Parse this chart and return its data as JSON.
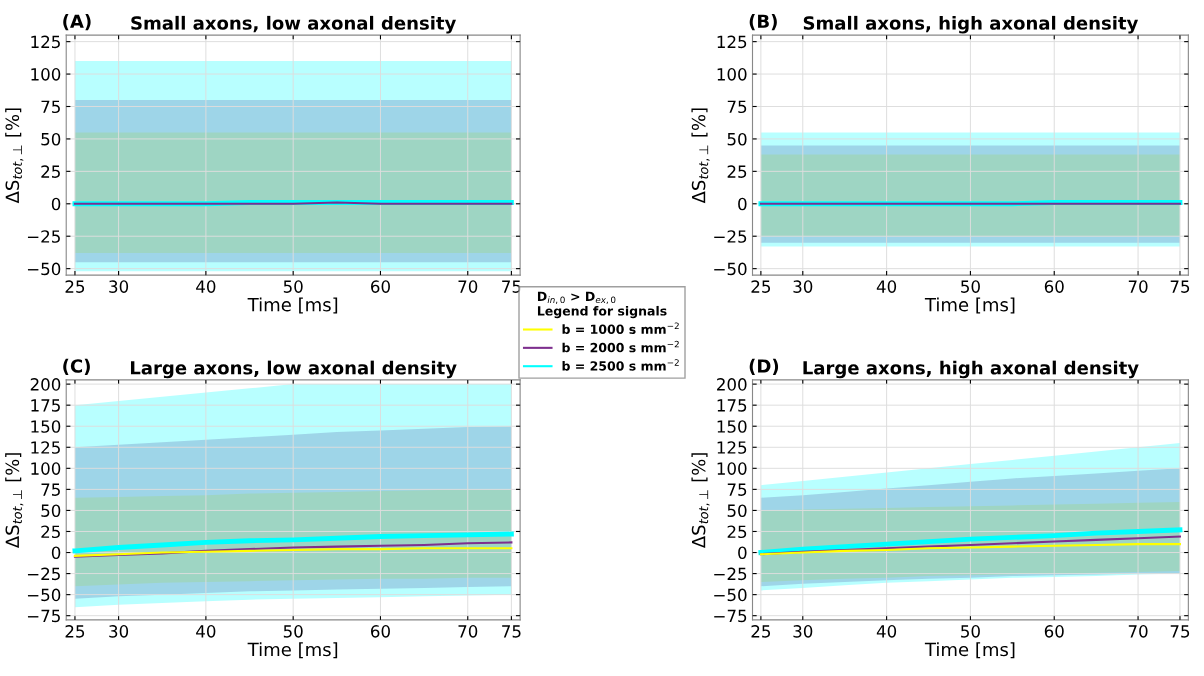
{
  "chart_data": [
    {
      "type": "line",
      "title": "Small axons, low axonal density",
      "annotations": [
        "(A)"
      ],
      "xlabel": "Time [ms]",
      "ylabel": "ΔS$_{tot,⊥}$ [%]",
      "x": [
        25,
        30,
        35,
        40,
        45,
        50,
        55,
        60,
        65,
        70,
        75
      ],
      "xlim": [
        24,
        76
      ],
      "xticks": [
        25,
        30,
        40,
        50,
        60,
        70,
        75
      ],
      "ylim": [
        -55,
        130
      ],
      "yticks": [
        -50,
        -25,
        0,
        25,
        50,
        75,
        100,
        125
      ],
      "grid": true,
      "legend": "right",
      "legend_title": "D$_{in,0}$ > D$_{ex,0}$\nLegend for signals",
      "series": [
        {
          "name": "b = 1000 s mm$^{−2}$",
          "color": "#ffff00",
          "values": [
            null,
            null,
            null,
            null,
            null,
            null,
            null,
            null,
            null,
            null,
            null
          ],
          "lower": [
            -38,
            -38,
            -38,
            -38,
            -38,
            -38,
            -38,
            -38,
            -38,
            -38,
            -38
          ],
          "upper": [
            55,
            55,
            55,
            55,
            55,
            55,
            55,
            55,
            55,
            55,
            55
          ]
        },
        {
          "name": "b = 2000 s mm$^{−2}$",
          "color": "#7e2f8e",
          "values": [
            0,
            0,
            0,
            0,
            0,
            0,
            1,
            0,
            0,
            0,
            0
          ],
          "lower": [
            -45,
            -45,
            -45,
            -45,
            -45,
            -45,
            -45,
            -45,
            -45,
            -45,
            -45
          ],
          "upper": [
            80,
            80,
            80,
            80,
            80,
            80,
            80,
            80,
            80,
            80,
            80
          ]
        },
        {
          "name": "b = 2500 s mm$^{−2}$",
          "color": "#00ffff",
          "values": [
            0,
            0,
            0,
            0,
            1,
            1,
            1,
            1,
            1,
            1,
            1
          ],
          "lower": [
            -52,
            -52,
            -52,
            -52,
            -52,
            -52,
            -52,
            -52,
            -52,
            -52,
            -52
          ],
          "upper": [
            110,
            110,
            110,
            110,
            110,
            110,
            110,
            110,
            110,
            110,
            110
          ]
        }
      ]
    },
    {
      "type": "line",
      "title": "Small axons, high axonal density",
      "annotations": [
        "(B)"
      ],
      "xlabel": "Time [ms]",
      "ylabel": "ΔS$_{tot,⊥}$ [%]",
      "x": [
        25,
        30,
        35,
        40,
        45,
        50,
        55,
        60,
        65,
        70,
        75
      ],
      "xlim": [
        24,
        76
      ],
      "xticks": [
        25,
        30,
        40,
        50,
        60,
        70,
        75
      ],
      "ylim": [
        -55,
        130
      ],
      "yticks": [
        -50,
        -25,
        0,
        25,
        50,
        75,
        100,
        125
      ],
      "grid": true,
      "series": [
        {
          "color": "#ffff00",
          "values": [
            null,
            null,
            null,
            null,
            null,
            null,
            null,
            null,
            null,
            null,
            null
          ],
          "lower": [
            -25,
            -25,
            -25,
            -25,
            -25,
            -25,
            -25,
            -25,
            -25,
            -25,
            -25
          ],
          "upper": [
            38,
            38,
            38,
            38,
            38,
            38,
            38,
            38,
            38,
            38,
            38
          ]
        },
        {
          "color": "#7e2f8e",
          "values": [
            0,
            0,
            0,
            0,
            0,
            0,
            0,
            0,
            0,
            0,
            0
          ],
          "lower": [
            -30,
            -30,
            -30,
            -30,
            -30,
            -30,
            -30,
            -30,
            -30,
            -30,
            -30
          ],
          "upper": [
            45,
            45,
            45,
            45,
            45,
            45,
            45,
            45,
            45,
            45,
            45
          ]
        },
        {
          "color": "#00ffff",
          "values": [
            0,
            0,
            0,
            0,
            0,
            0,
            0,
            1,
            1,
            1,
            1
          ],
          "lower": [
            -33,
            -33,
            -33,
            -33,
            -33,
            -33,
            -33,
            -33,
            -33,
            -33,
            -33
          ],
          "upper": [
            55,
            55,
            55,
            55,
            55,
            55,
            55,
            55,
            55,
            55,
            55
          ]
        }
      ]
    },
    {
      "type": "line",
      "title": "Large axons, low axonal density",
      "annotations": [
        "(C)"
      ],
      "xlabel": "Time [ms]",
      "ylabel": "ΔS$_{tot,⊥}$ [%]",
      "x": [
        25,
        30,
        35,
        40,
        45,
        50,
        55,
        60,
        65,
        70,
        75
      ],
      "xlim": [
        24,
        76
      ],
      "xticks": [
        25,
        30,
        40,
        50,
        60,
        70,
        75
      ],
      "ylim": [
        -80,
        205
      ],
      "yticks": [
        -75,
        -50,
        -25,
        0,
        25,
        50,
        75,
        100,
        125,
        150,
        175,
        200
      ],
      "grid": true,
      "series": [
        {
          "color": "#ffff00",
          "values": [
            -4,
            -2,
            0,
            1,
            2,
            3,
            4,
            4,
            5,
            5,
            5
          ],
          "lower": [
            -40,
            -38,
            -36,
            -35,
            -34,
            -33,
            -32,
            -31,
            -31,
            -30,
            -30
          ],
          "upper": [
            65,
            66,
            67,
            68,
            70,
            71,
            72,
            73,
            74,
            75,
            75
          ]
        },
        {
          "color": "#7e2f8e",
          "values": [
            -5,
            -3,
            -1,
            2,
            4,
            6,
            7,
            8,
            9,
            11,
            12
          ],
          "lower": [
            -55,
            -52,
            -50,
            -48,
            -46,
            -45,
            -44,
            -43,
            -42,
            -41,
            -40
          ],
          "upper": [
            125,
            128,
            131,
            134,
            137,
            140,
            143,
            145,
            147,
            149,
            150
          ]
        },
        {
          "color": "#00ffff",
          "values": [
            2,
            6,
            9,
            12,
            14,
            15,
            17,
            19,
            20,
            21,
            22
          ],
          "lower": [
            -65,
            -62,
            -60,
            -58,
            -56,
            -55,
            -54,
            -53,
            -52,
            -51,
            -50
          ],
          "upper": [
            175,
            180,
            185,
            190,
            195,
            200,
            200,
            200,
            200,
            200,
            200
          ]
        }
      ]
    },
    {
      "type": "line",
      "title": "Large axons, high axonal density",
      "annotations": [
        "(D)"
      ],
      "xlabel": "Time [ms]",
      "ylabel": "ΔS$_{tot,⊥}$ [%]",
      "x": [
        25,
        30,
        35,
        40,
        45,
        50,
        55,
        60,
        65,
        70,
        75
      ],
      "xlim": [
        24,
        76
      ],
      "xticks": [
        25,
        30,
        40,
        50,
        60,
        70,
        75
      ],
      "ylim": [
        -80,
        205
      ],
      "yticks": [
        -75,
        -50,
        -25,
        0,
        25,
        50,
        75,
        100,
        125,
        150,
        175,
        200
      ],
      "grid": true,
      "series": [
        {
          "color": "#ffff00",
          "values": [
            -2,
            0,
            2,
            3,
            5,
            6,
            7,
            8,
            9,
            10,
            10
          ],
          "lower": [
            -35,
            -33,
            -31,
            -30,
            -28,
            -27,
            -26,
            -25,
            -24,
            -23,
            -22
          ],
          "upper": [
            50,
            51,
            52,
            53,
            54,
            55,
            56,
            57,
            58,
            59,
            60
          ]
        },
        {
          "color": "#7e2f8e",
          "values": [
            -2,
            1,
            3,
            5,
            7,
            9,
            11,
            13,
            15,
            17,
            19
          ],
          "lower": [
            -40,
            -37,
            -35,
            -33,
            -31,
            -30,
            -28,
            -27,
            -26,
            -25,
            -25
          ],
          "upper": [
            65,
            68,
            72,
            76,
            80,
            84,
            88,
            91,
            94,
            97,
            100
          ]
        },
        {
          "color": "#00ffff",
          "values": [
            0,
            4,
            7,
            10,
            13,
            16,
            18,
            20,
            23,
            25,
            27
          ],
          "lower": [
            -45,
            -42,
            -39,
            -36,
            -34,
            -32,
            -30,
            -29,
            -28,
            -26,
            -25
          ],
          "upper": [
            80,
            85,
            90,
            95,
            100,
            105,
            110,
            115,
            120,
            125,
            130
          ]
        }
      ]
    }
  ]
}
